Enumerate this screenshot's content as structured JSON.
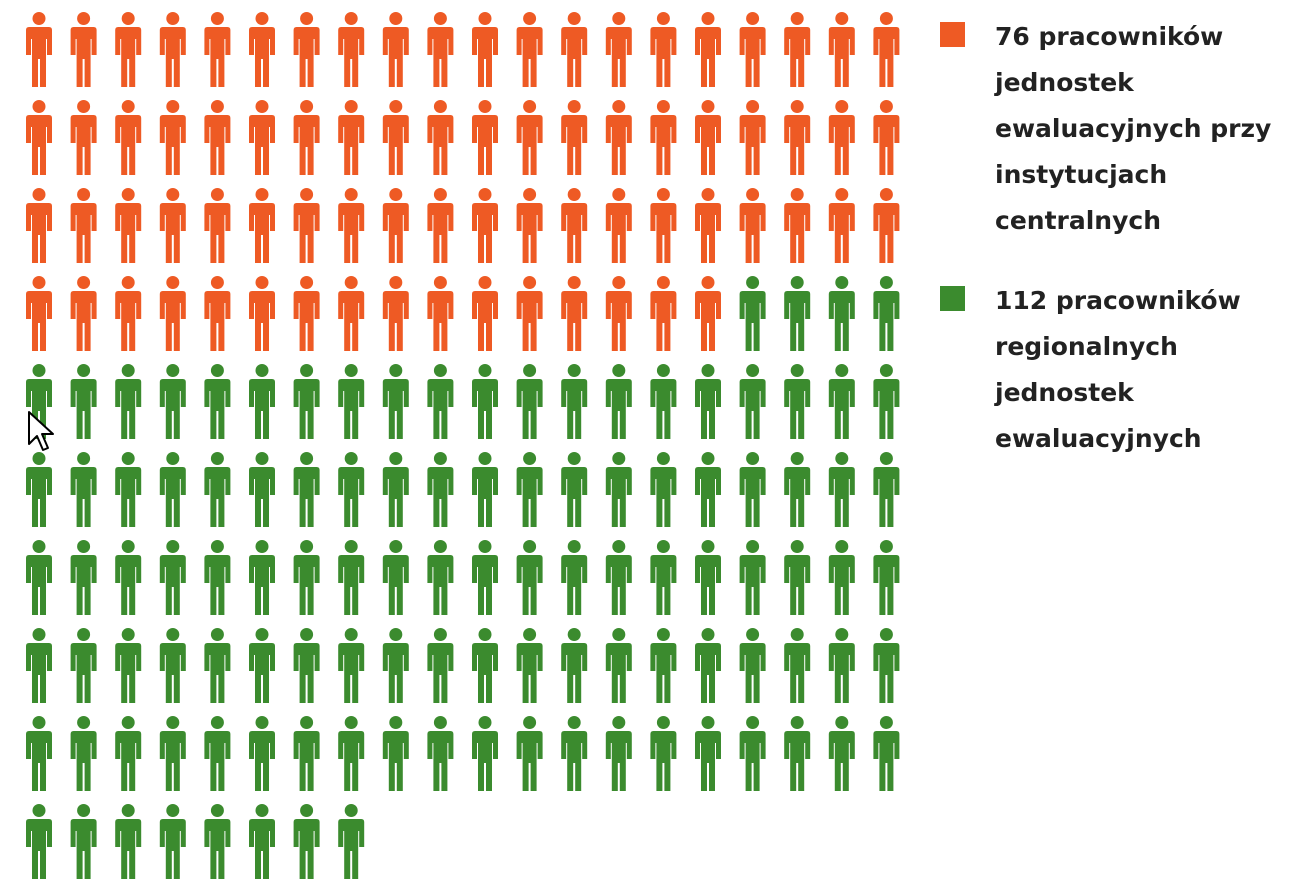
{
  "chart_data": {
    "type": "pictogram",
    "per_row": 20,
    "series": [
      {
        "name": "76 pracowników\njednostek\newaluacyjnych przy\ninstytucjach\ncentralnych",
        "value": 76,
        "color": "#EE5A24"
      },
      {
        "name": "112 pracowników\nregionalnych\njednostek\newaluacyjnych",
        "value": 112,
        "color": "#3B8B2E"
      }
    ]
  },
  "cursor": {
    "icon": "arrow-pointer-icon"
  }
}
